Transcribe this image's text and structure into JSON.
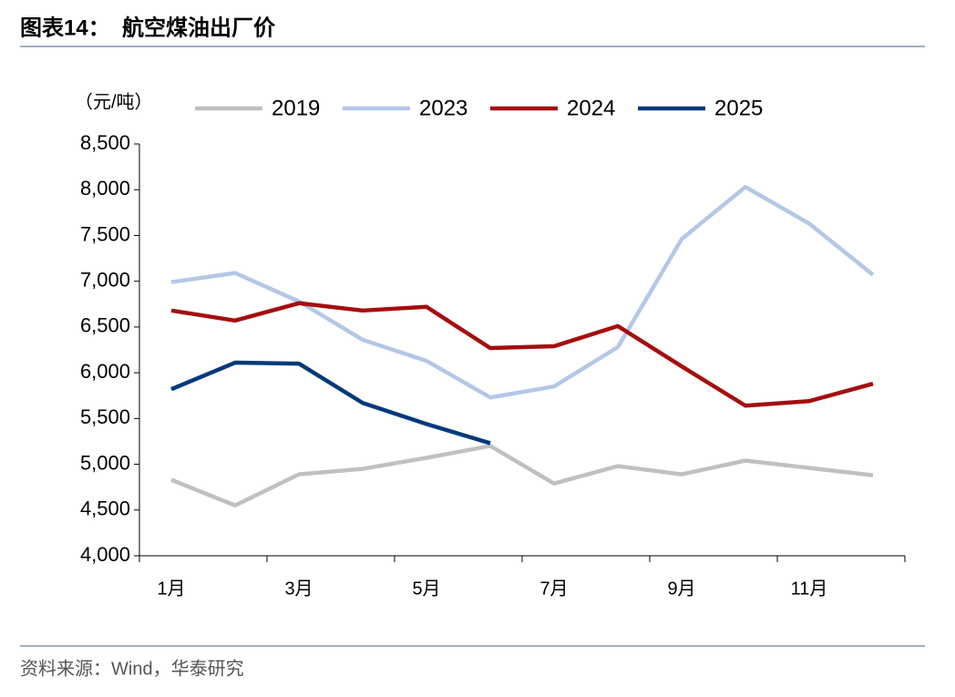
{
  "chart_data": {
    "type": "line",
    "title": "图表14：  航空煤油出厂价",
    "y_label": "（元/吨）",
    "source": "资料来源：Wind，华泰研究",
    "categories": [
      "1月",
      null,
      "3月",
      null,
      "5月",
      null,
      "7月",
      null,
      "9月",
      null,
      "11月",
      null
    ],
    "series": [
      {
        "name": "2019",
        "color": "#c0c0c0",
        "values": [
          4830,
          4550,
          4890,
          4950,
          5070,
          5200,
          4790,
          4980,
          4890,
          5040,
          4960,
          4880
        ]
      },
      {
        "name": "2023",
        "color": "#b4c7e7",
        "values": [
          6990,
          7090,
          6780,
          6360,
          6130,
          5730,
          5850,
          6280,
          7460,
          8030,
          7630,
          7070
        ]
      },
      {
        "name": "2024",
        "color": "#a50e0e",
        "values": [
          6680,
          6570,
          6760,
          6680,
          6720,
          6270,
          6290,
          6510,
          6070,
          5640,
          5690,
          5880
        ]
      },
      {
        "name": "2025",
        "color": "#003a7a",
        "values": [
          5820,
          6110,
          6100,
          5670,
          5440,
          5230,
          null,
          null,
          null,
          null,
          null,
          null
        ]
      }
    ],
    "ylim": [
      4000,
      8500
    ],
    "yticks": [
      {
        "value": 4000,
        "label": "4,000"
      },
      {
        "value": 4500,
        "label": "4,500"
      },
      {
        "value": 5000,
        "label": "5,000"
      },
      {
        "value": 5500,
        "label": "5,500"
      },
      {
        "value": 6000,
        "label": "6,000"
      },
      {
        "value": 6500,
        "label": "6,500"
      },
      {
        "value": 7000,
        "label": "7,000"
      },
      {
        "value": 7500,
        "label": "7,500"
      },
      {
        "value": 8000,
        "label": "8,000"
      },
      {
        "value": 8500,
        "label": "8,500"
      }
    ],
    "legend": "top"
  }
}
